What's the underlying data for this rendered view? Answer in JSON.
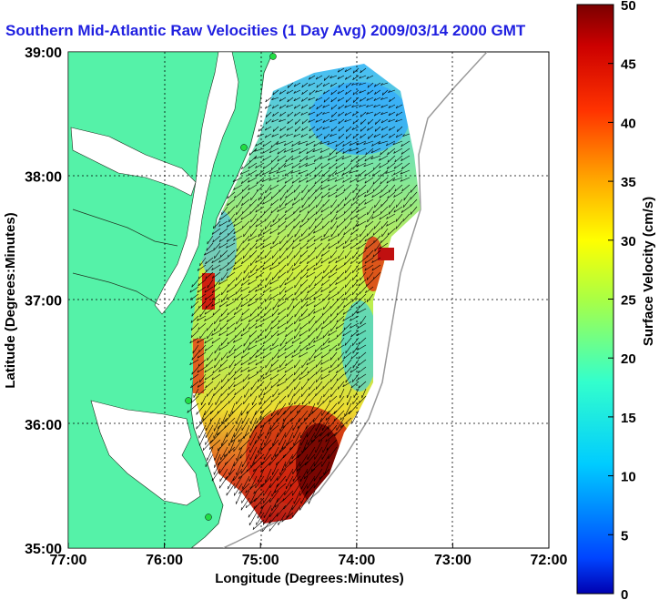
{
  "title": "Southern Mid-Atlantic Raw Velocities (1 Day Avg) 2009/03/14 2000 GMT",
  "xaxis": {
    "label": "Longitude (Degrees:Minutes)",
    "ticks": [
      "77:00",
      "76:00",
      "75:00",
      "74:00",
      "73:00",
      "72:00"
    ]
  },
  "yaxis": {
    "label": "Latitude (Degrees:Minutes)",
    "ticks": [
      "39:00",
      "38:00",
      "37:00",
      "36:00",
      "35:00"
    ]
  },
  "colorbar": {
    "label": "Surface Velocity (cm/s)",
    "ticks": [
      "50",
      "45",
      "40",
      "35",
      "30",
      "25",
      "20",
      "15",
      "10",
      "5",
      "0"
    ],
    "range": [
      0,
      50
    ]
  },
  "colors": {
    "land": "#55f2a8",
    "title": "#1f1fe0",
    "vector": "#000000",
    "station": "#22dd44"
  }
}
